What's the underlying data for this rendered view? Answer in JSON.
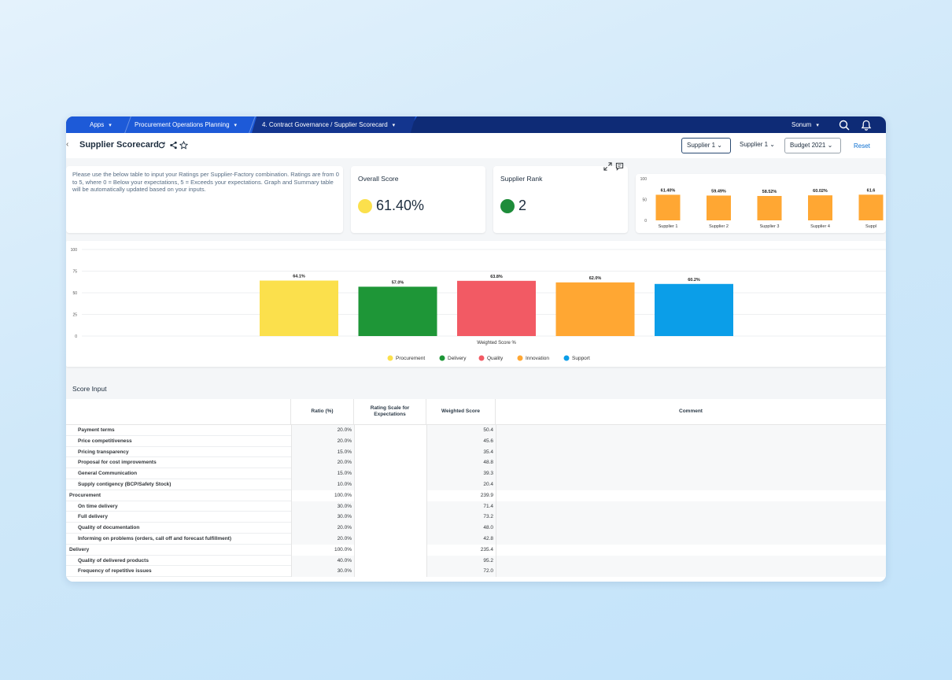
{
  "topbar": {
    "apps": "Apps",
    "crumb1": "Procurement Operations Planning",
    "crumb2": "4. Contract Governance / Supplier Scorecard",
    "user": "Sonum"
  },
  "header": {
    "title": "Supplier Scorecard",
    "filter1": "Supplier 1",
    "filter2": "Supplier 1",
    "filter3": "Budget 2021",
    "reset": "Reset"
  },
  "info": {
    "text": "Please use the below table to input your Ratings per Supplier-Factory combination. Ratings are from 0 to 5, where 0 = Below your expectations, 5 = Exceeds your expectations. Graph and Summary table will be automatically updated based on your inputs."
  },
  "kpi": {
    "overall_label": "Overall Score",
    "overall_value": "61.40%",
    "overall_color": "#fbe04c",
    "rank_label": "Supplier Rank",
    "rank_value": "2",
    "rank_color": "#1e8c3a"
  },
  "chart_data": [
    {
      "type": "bar",
      "categories": [
        "Supplier 1",
        "Supplier 2",
        "Supplier 3",
        "Supplier 4",
        "Suppl"
      ],
      "values": [
        61.4,
        59.49,
        58.52,
        60.02,
        61.6
      ],
      "labels": [
        "61.40%",
        "59.49%",
        "58.52%",
        "60.02%",
        "61.6"
      ],
      "yticks": [
        "100",
        "50",
        "0"
      ],
      "ylim": [
        0,
        100
      ],
      "color": "#ffa733",
      "grid": false
    },
    {
      "type": "bar",
      "categories": [
        "Procurement",
        "Delivery",
        "Quality",
        "Innovation",
        "Support"
      ],
      "values": [
        64.1,
        57.0,
        63.8,
        62.0,
        60.2
      ],
      "labels": [
        "64.1%",
        "57.0%",
        "63.8%",
        "62.0%",
        "60.2%"
      ],
      "colors": [
        "#fbe04c",
        "#1e9637",
        "#f25a64",
        "#ffa733",
        "#0b9ee8"
      ],
      "yticks": [
        "100",
        "75",
        "50",
        "25",
        "0"
      ],
      "ylim": [
        0,
        100
      ],
      "xlabel": "Weighted Score %",
      "legend": [
        "Procurement",
        "Delivery",
        "Quality",
        "Innovation",
        "Support"
      ],
      "legend_position": "bottom",
      "grid": true
    }
  ],
  "table": {
    "section_title": "Score Input",
    "headers": [
      "Ratio (%)",
      "Rating Scale for Expectations",
      "Weighted Score",
      "Comment"
    ],
    "rows": [
      {
        "label": "Payment terms",
        "ratio": "20.0%",
        "score": "50.4",
        "group": false
      },
      {
        "label": "Price competitiveness",
        "ratio": "20.0%",
        "score": "45.6",
        "group": false
      },
      {
        "label": "Pricing transparency",
        "ratio": "15.0%",
        "score": "35.4",
        "group": false
      },
      {
        "label": "Proposal for cost improvements",
        "ratio": "20.0%",
        "score": "48.8",
        "group": false
      },
      {
        "label": "General Communication",
        "ratio": "15.0%",
        "score": "39.3",
        "group": false
      },
      {
        "label": "Supply contigency (BCP/Safety Stock)",
        "ratio": "10.0%",
        "score": "20.4",
        "group": false
      },
      {
        "label": "Procurement",
        "ratio": "100.0%",
        "score": "239.9",
        "group": true
      },
      {
        "label": "On time delivery",
        "ratio": "30.0%",
        "score": "71.4",
        "group": false
      },
      {
        "label": "Full delivery",
        "ratio": "30.0%",
        "score": "73.2",
        "group": false
      },
      {
        "label": "Quality of documentation",
        "ratio": "20.0%",
        "score": "48.0",
        "group": false
      },
      {
        "label": "Informing on problems (orders, call off and forecast fulfillment)",
        "ratio": "20.0%",
        "score": "42.8",
        "group": false
      },
      {
        "label": "Delivery",
        "ratio": "100.0%",
        "score": "235.4",
        "group": true
      },
      {
        "label": "Quality of delivered products",
        "ratio": "40.0%",
        "score": "95.2",
        "group": false
      },
      {
        "label": "Frequency of repetitive issues",
        "ratio": "30.0%",
        "score": "72.0",
        "group": false
      }
    ]
  }
}
